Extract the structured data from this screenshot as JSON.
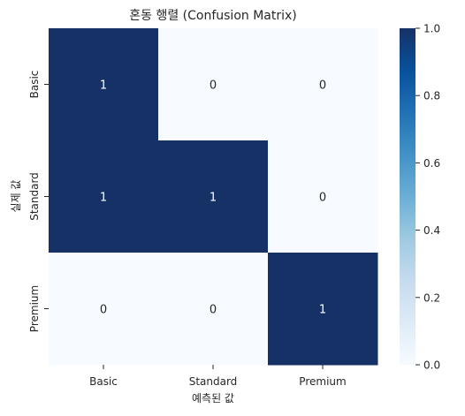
{
  "chart_data": {
    "type": "heatmap",
    "title": "혼동 행렬 (Confusion Matrix)",
    "xlabel": "예측된 값",
    "ylabel": "실제 값",
    "x_categories": [
      "Basic",
      "Standard",
      "Premium"
    ],
    "y_categories": [
      "Basic",
      "Standard",
      "Premium"
    ],
    "values": [
      [
        1,
        0,
        0
      ],
      [
        1,
        1,
        0
      ],
      [
        0,
        0,
        1
      ]
    ],
    "annotations": [
      [
        "1",
        "0",
        "0"
      ],
      [
        "1",
        "1",
        "0"
      ],
      [
        "0",
        "0",
        "1"
      ]
    ],
    "colormap": "Blues",
    "color_range": [
      0,
      1
    ],
    "colorbar_ticks": [
      "0.0",
      "0.2",
      "0.4",
      "0.6",
      "0.8",
      "1.0"
    ],
    "colors": {
      "low": "#f7fbff",
      "high": "#163166",
      "annotation_on_low": "#262626",
      "annotation_on_high": "#ffffff"
    }
  }
}
